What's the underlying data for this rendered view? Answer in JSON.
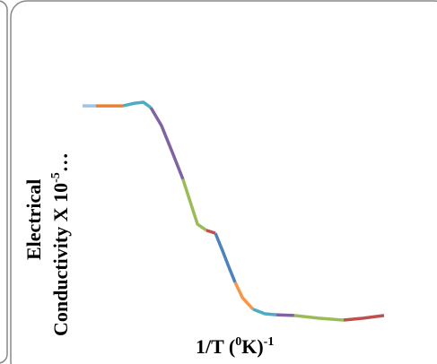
{
  "chart_data": {
    "type": "line",
    "y_label": [
      "Electrical",
      "Conductivity X 10",
      "-5",
      "…"
    ],
    "x_label": [
      "1/T (",
      "0",
      "K)",
      "-1"
    ],
    "xlim": [
      0,
      100
    ],
    "ylim": [
      0,
      100
    ],
    "series": [
      {
        "color": "#9dc3e6",
        "x": [
          0,
          4.4
        ],
        "values": [
          93.3,
          93.3
        ]
      },
      {
        "color": "#ed7d31",
        "x": [
          4.4,
          13.3
        ],
        "values": [
          93.3,
          93.3
        ]
      },
      {
        "color": "#4bacc6",
        "x": [
          13.3,
          17.2,
          20.1,
          22.5
        ],
        "values": [
          93.3,
          94.4,
          94.8,
          92.6
        ]
      },
      {
        "color": "#8064a2",
        "x": [
          22.5,
          26,
          29.6,
          33.1
        ],
        "values": [
          92.6,
          85.2,
          74.1,
          63
        ]
      },
      {
        "color": "#9bbb59",
        "x": [
          33.1,
          35.5,
          37.9,
          40.8
        ],
        "values": [
          63,
          53.7,
          44.4,
          41.9
        ]
      },
      {
        "color": "#c0504d",
        "x": [
          40.8,
          43.8
        ],
        "values": [
          41.9,
          40.7
        ]
      },
      {
        "color": "#4f81bd",
        "x": [
          43.8,
          46.2,
          48.5,
          50.3
        ],
        "values": [
          40.7,
          33.3,
          25.9,
          20.4
        ]
      },
      {
        "color": "#f79646",
        "x": [
          50.3,
          52.7,
          56.2
        ],
        "values": [
          20.4,
          14.1,
          9.3
        ]
      },
      {
        "color": "#4bacc6",
        "x": [
          56.2,
          60.1,
          63.9
        ],
        "values": [
          9.3,
          7.4,
          7
        ]
      },
      {
        "color": "#8064a2",
        "x": [
          63.9,
          69.8
        ],
        "values": [
          7,
          6.7
        ]
      },
      {
        "color": "#9bbb59",
        "x": [
          69.8,
          77.8,
          86.1
        ],
        "values": [
          6.7,
          5.6,
          4.8
        ]
      },
      {
        "color": "#c0504d",
        "x": [
          86.1,
          92.6,
          99.4
        ],
        "values": [
          4.8,
          5.6,
          6.7
        ]
      }
    ]
  }
}
